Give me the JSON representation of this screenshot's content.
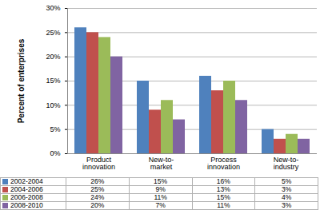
{
  "chart_data": {
    "type": "bar",
    "categories": [
      "Product innovation",
      "New-to-market",
      "Process innovation",
      "New-to-industry"
    ],
    "series": [
      {
        "name": "2002-2004",
        "color": "#4f81bd",
        "values": [
          26,
          15,
          16,
          5
        ],
        "value_labels": [
          "26%",
          "15%",
          "16%",
          "5%"
        ]
      },
      {
        "name": "2004-2006",
        "color": "#c0504d",
        "values": [
          25,
          9,
          13,
          3
        ],
        "value_labels": [
          "25%",
          "9%",
          "13%",
          "3%"
        ]
      },
      {
        "name": "2006-2008",
        "color": "#9bbb59",
        "values": [
          24,
          11,
          15,
          4
        ],
        "value_labels": [
          "24%",
          "11%",
          "15%",
          "4%"
        ]
      },
      {
        "name": "2008-2010",
        "color": "#8064a2",
        "values": [
          20,
          7,
          11,
          3
        ],
        "value_labels": [
          "20%",
          "7%",
          "11%",
          "3%"
        ]
      }
    ],
    "ylabel": "Percent of enterprises",
    "ylim": [
      0,
      30
    ],
    "yticks": [
      {
        "value": 0,
        "label": "0%"
      },
      {
        "value": 5,
        "label": "5%"
      },
      {
        "value": 10,
        "label": "10%"
      },
      {
        "value": 15,
        "label": "15%"
      },
      {
        "value": 20,
        "label": "20%"
      },
      {
        "value": 25,
        "label": "25%"
      },
      {
        "value": 30,
        "label": "30%"
      }
    ],
    "grid": true
  }
}
